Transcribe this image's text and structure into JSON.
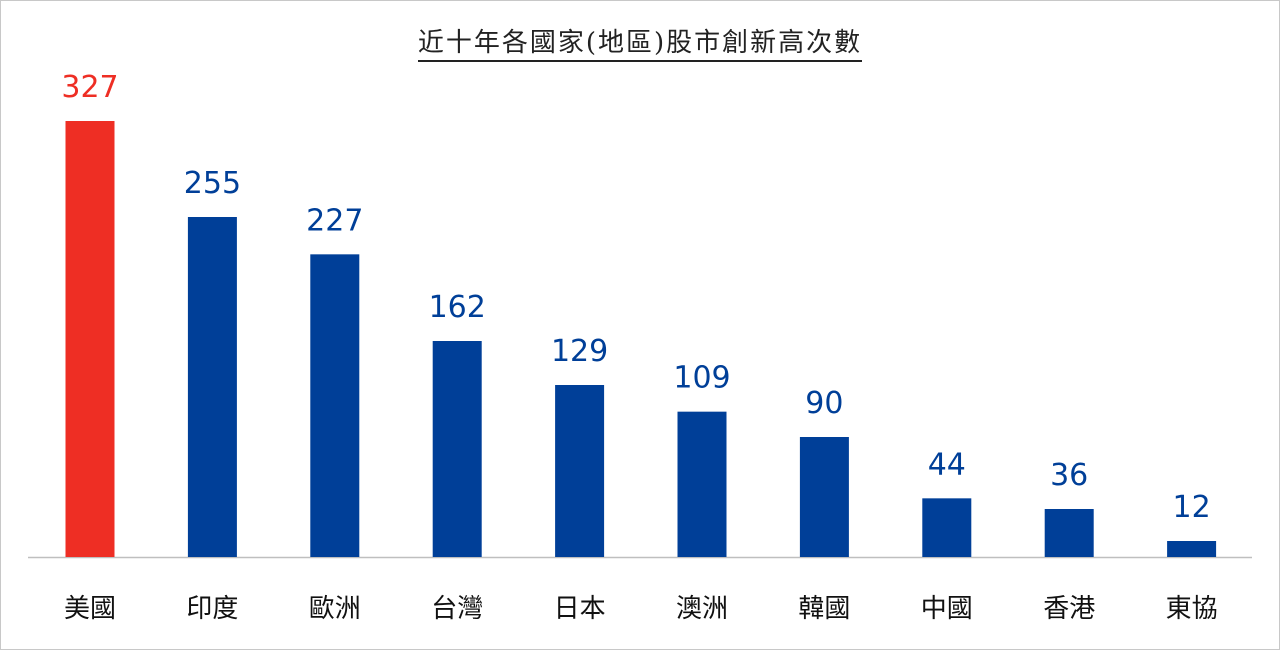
{
  "chart_data": {
    "type": "bar",
    "title": "近十年各國家(地區)股市創新高次數",
    "categories": [
      "美國",
      "印度",
      "歐洲",
      "台灣",
      "日本",
      "澳洲",
      "韓國",
      "中國",
      "香港",
      "東協"
    ],
    "values": [
      327,
      255,
      227,
      162,
      129,
      109,
      90,
      44,
      36,
      12
    ],
    "highlight_index": 0,
    "ylim": [
      0,
      327
    ],
    "grid": false,
    "legend": "none"
  },
  "colors": {
    "highlight": "#ee2e24",
    "bar": "#003f98",
    "highlight_label": "#ee2e24",
    "bar_label": "#003f98",
    "axis": "#bfbfbf"
  }
}
